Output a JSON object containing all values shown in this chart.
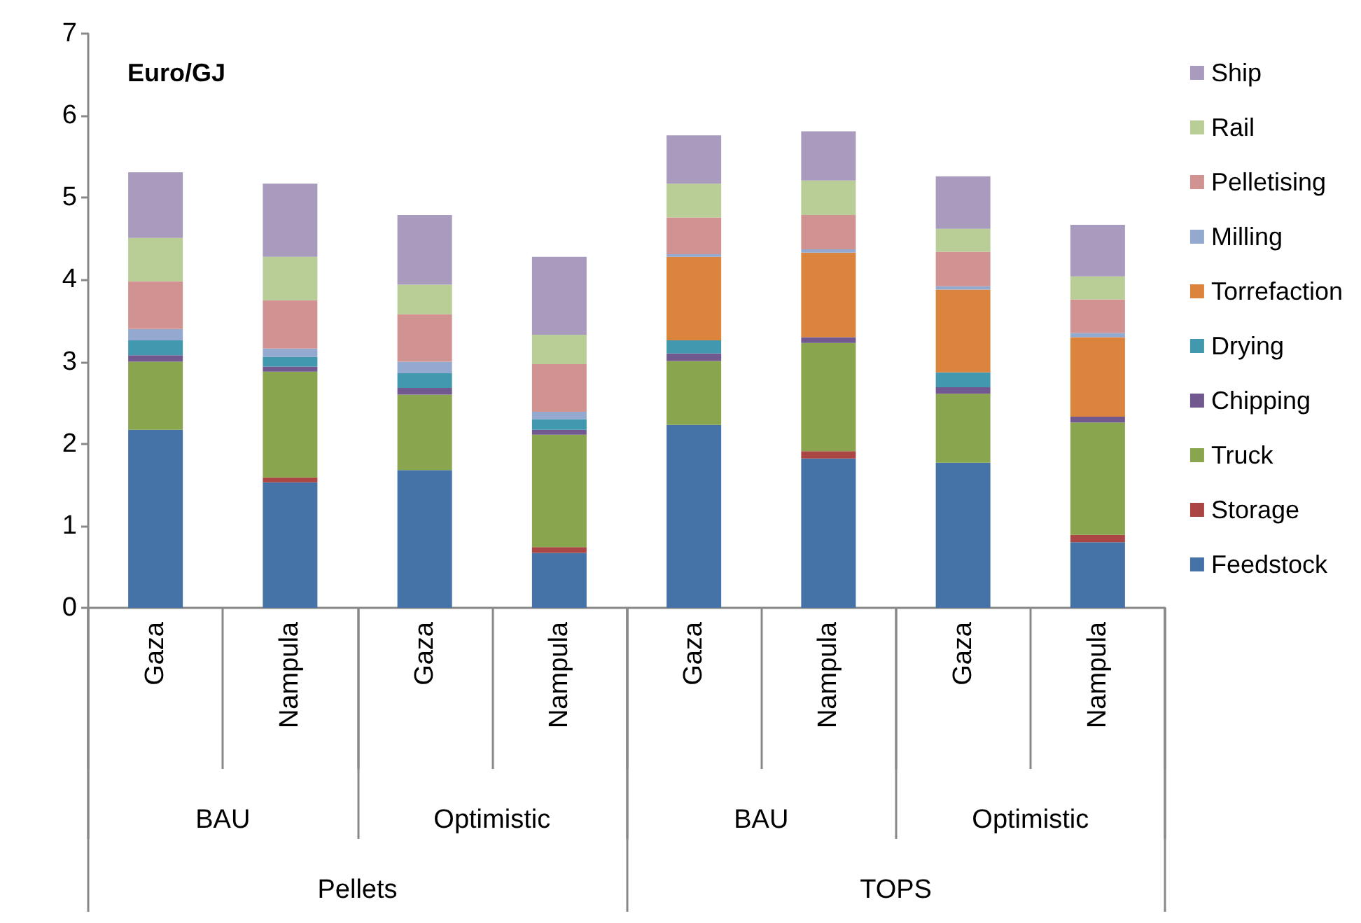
{
  "chart_data": {
    "type": "bar",
    "title": "Euro/GJ",
    "stacked": true,
    "categories": [
      "Gaza",
      "Nampula",
      "Gaza",
      "Nampula",
      "Gaza",
      "Nampula",
      "Gaza",
      "Nampula"
    ],
    "annotations": [
      "BAU",
      "Optimistic",
      "BAU",
      "Optimistic",
      "Pellets",
      "TOPS"
    ],
    "series": [
      {
        "name": "Feedstock",
        "color": "#4572a7",
        "values": [
          2.17,
          1.53,
          1.68,
          0.67,
          2.23,
          1.82,
          1.77,
          0.8
        ]
      },
      {
        "name": "Storage",
        "color": "#aa4643",
        "values": [
          0,
          0.06,
          0,
          0.07,
          0,
          0.09,
          0,
          0.09
        ]
      },
      {
        "name": "Truck",
        "color": "#89a54e",
        "values": [
          0.83,
          1.29,
          0.92,
          1.37,
          0.78,
          1.32,
          0.84,
          1.37
        ]
      },
      {
        "name": "Chipping",
        "color": "#71588f",
        "values": [
          0.08,
          0.06,
          0.08,
          0.06,
          0.09,
          0.07,
          0.08,
          0.07
        ]
      },
      {
        "name": "Drying",
        "color": "#4198af",
        "values": [
          0.18,
          0.12,
          0.18,
          0.13,
          0.16,
          0,
          0.18,
          0
        ]
      },
      {
        "name": "Torrefaction",
        "color": "#db843d",
        "values": [
          0,
          0,
          0,
          0,
          1.02,
          1.03,
          1.01,
          0.97
        ]
      },
      {
        "name": "Milling",
        "color": "#93a9cf",
        "values": [
          0.14,
          0.1,
          0.14,
          0.09,
          0.03,
          0.04,
          0.04,
          0.05
        ]
      },
      {
        "name": "Pelletising",
        "color": "#d19392",
        "values": [
          0.58,
          0.59,
          0.58,
          0.58,
          0.45,
          0.42,
          0.42,
          0.41
        ]
      },
      {
        "name": "Rail",
        "color": "#b9cd96",
        "values": [
          0.53,
          0.53,
          0.36,
          0.36,
          0.41,
          0.42,
          0.28,
          0.28
        ]
      },
      {
        "name": "Ship",
        "color": "#a99bbd",
        "values": [
          0.8,
          0.89,
          0.85,
          0.95,
          0.59,
          0.6,
          0.64,
          0.63
        ]
      }
    ],
    "ylim": [
      0,
      7
    ],
    "yticks": [
      0,
      1,
      2,
      3,
      4,
      5,
      6,
      7
    ],
    "grid": false,
    "legend": "right"
  }
}
